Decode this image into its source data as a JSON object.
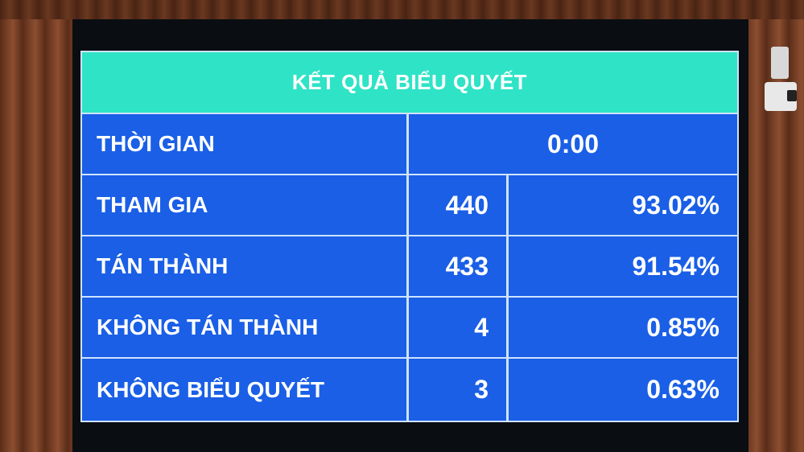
{
  "title": "KẾT QUẢ BIỂU QUYẾT",
  "time": {
    "label": "THỜI GIAN",
    "value": "0:00"
  },
  "rows": [
    {
      "label": "THAM GIA",
      "count": "440",
      "percent": "93.02%"
    },
    {
      "label": "TÁN THÀNH",
      "count": "433",
      "percent": "91.54%"
    },
    {
      "label": "KHÔNG TÁN THÀNH",
      "count": "4",
      "percent": "0.85%"
    },
    {
      "label": "KHÔNG BIỂU QUYẾT",
      "count": "3",
      "percent": "0.63%"
    }
  ],
  "colors": {
    "header": "#2fe3c6",
    "cell": "#1a5fe6",
    "text": "#ffffff",
    "wood": "#7a4228"
  }
}
